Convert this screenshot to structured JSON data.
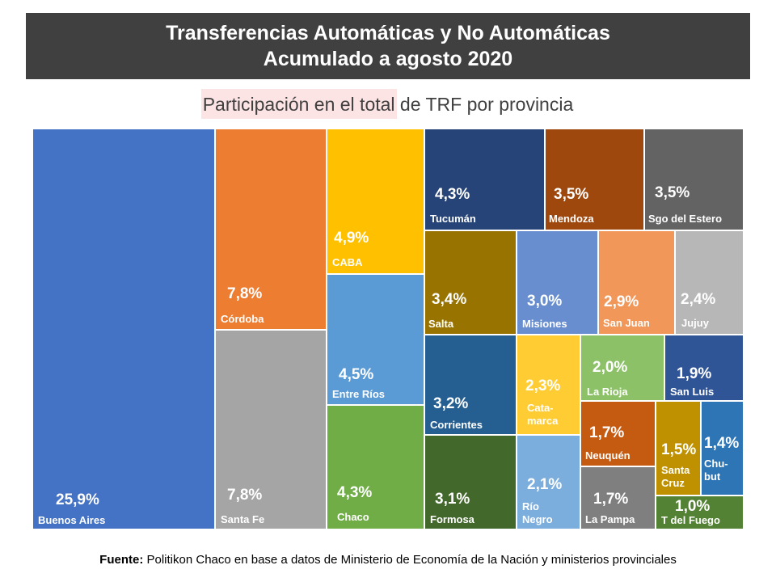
{
  "header": {
    "title_line1": "Transferencias Automáticas y No Automáticas",
    "title_line2": "Acumulado a agosto 2020"
  },
  "subtitle": {
    "highlighted": "Participación en el total",
    "rest": " de TRF por provincia"
  },
  "source": {
    "label": "Fuente:",
    "text": " Politikon Chaco en base a datos de Ministerio de Economía de la Nación y ministerios provinciales"
  },
  "chart_data": {
    "type": "treemap",
    "title": "Transferencias Automáticas y No Automáticas Acumulado a agosto 2020",
    "subtitle": "Participación en el total de TRF por provincia",
    "unit": "%",
    "items": [
      {
        "name": "Buenos Aires",
        "label": "Buenos Aires",
        "value": 25.9,
        "display": "25,9%",
        "color": "#4472c4"
      },
      {
        "name": "Córdoba",
        "label": "Córdoba",
        "value": 7.8,
        "display": "7,8%",
        "color": "#ed7d31"
      },
      {
        "name": "Santa Fe",
        "label": "Santa Fe",
        "value": 7.8,
        "display": "7,8%",
        "color": "#a5a5a5"
      },
      {
        "name": "CABA",
        "label": "CABA",
        "value": 4.9,
        "display": "4,9%",
        "color": "#ffc000"
      },
      {
        "name": "Entre Ríos",
        "label": "Entre Ríos",
        "value": 4.5,
        "display": "4,5%",
        "color": "#5b9bd5"
      },
      {
        "name": "Chaco",
        "label": "Chaco",
        "value": 4.3,
        "display": "4,3%",
        "color": "#70ad47"
      },
      {
        "name": "Tucumán",
        "label": "Tucumán",
        "value": 4.3,
        "display": "4,3%",
        "color": "#264478"
      },
      {
        "name": "Mendoza",
        "label": "Mendoza",
        "value": 3.5,
        "display": "3,5%",
        "color": "#9e480e"
      },
      {
        "name": "Sgo del Estero",
        "label": "Sgo del Estero",
        "value": 3.5,
        "display": "3,5%",
        "color": "#636363"
      },
      {
        "name": "Salta",
        "label": "Salta",
        "value": 3.4,
        "display": "3,4%",
        "color": "#997300"
      },
      {
        "name": "Misiones",
        "label": "Misiones",
        "value": 3.0,
        "display": "3,0%",
        "color": "#698ed0"
      },
      {
        "name": "San Juan",
        "label": "San Juan",
        "value": 2.9,
        "display": "2,9%",
        "color": "#f1975a"
      },
      {
        "name": "Jujuy",
        "label": "Jujuy",
        "value": 2.4,
        "display": "2,4%",
        "color": "#b7b7b7"
      },
      {
        "name": "Corrientes",
        "label": "Corrientes",
        "value": 3.2,
        "display": "3,2%",
        "color": "#255e91"
      },
      {
        "name": "Catamarca",
        "label": "Cata-\nmarca",
        "value": 2.3,
        "display": "2,3%",
        "color": "#ffcd33"
      },
      {
        "name": "La Rioja",
        "label": "La Rioja",
        "value": 2.0,
        "display": "2,0%",
        "color": "#8cc168"
      },
      {
        "name": "San Luis",
        "label": "San Luis",
        "value": 1.9,
        "display": "1,9%",
        "color": "#2f5597"
      },
      {
        "name": "Formosa",
        "label": "Formosa",
        "value": 3.1,
        "display": "3,1%",
        "color": "#43682b"
      },
      {
        "name": "Río Negro",
        "label": "Río\nNegro",
        "value": 2.1,
        "display": "2,1%",
        "color": "#7caedd"
      },
      {
        "name": "Neuquén",
        "label": "Neuquén",
        "value": 1.7,
        "display": "1,7%",
        "color": "#c55a11"
      },
      {
        "name": "La Pampa",
        "label": "La Pampa",
        "value": 1.7,
        "display": "1,7%",
        "color": "#7f7f7f"
      },
      {
        "name": "Santa Cruz",
        "label": "Santa\nCruz",
        "value": 1.5,
        "display": "1,5%",
        "color": "#bf9000"
      },
      {
        "name": "Chubut",
        "label": "Chu-\nbut",
        "value": 1.4,
        "display": "1,4%",
        "color": "#2e75b6"
      },
      {
        "name": "T del Fuego",
        "label": "T del Fuego",
        "value": 1.0,
        "display": "1,0%",
        "color": "#548235"
      }
    ]
  }
}
